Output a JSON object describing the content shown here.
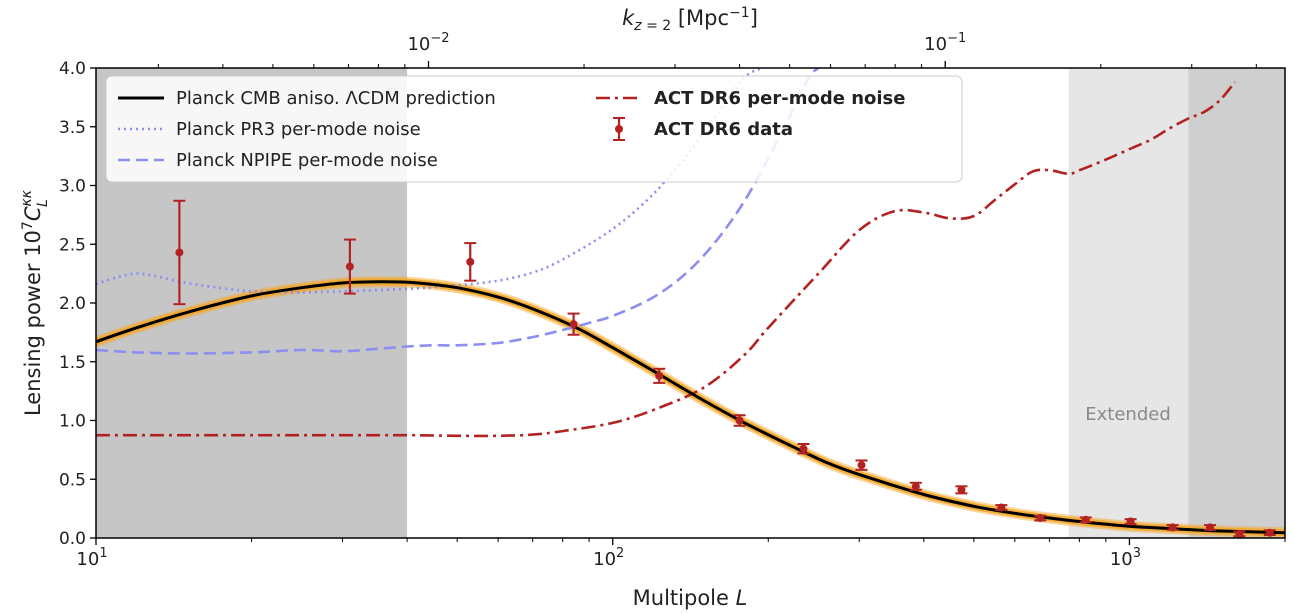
{
  "chart_data": {
    "type": "line",
    "xlabel_prefix": "Multipole ",
    "xlabel_var": "L",
    "ylabel": "Lensing power 10⁷C_L^κκ",
    "top_xlabel": "k_{z=2} [Mpc⁻¹]",
    "xscale": "log",
    "xlim": [
      10,
      2000
    ],
    "ylim": [
      0,
      4.0
    ],
    "yticks": [
      "0.0",
      "0.5",
      "1.0",
      "1.5",
      "2.0",
      "2.5",
      "3.0",
      "3.5",
      "4.0"
    ],
    "xticks": [
      {
        "base": "10",
        "exp": "1"
      },
      {
        "base": "10",
        "exp": "2"
      },
      {
        "base": "10",
        "exp": "3"
      }
    ],
    "top_ticks": [
      {
        "base": "10",
        "exp": "−2",
        "x": 44
      },
      {
        "base": "10",
        "exp": "−1",
        "x": 440
      }
    ],
    "shaded_regions": [
      {
        "from": 10,
        "to": 40,
        "color": "#c6c6c6"
      },
      {
        "from": 763,
        "to": 1300,
        "color": "#e6e6e6",
        "label": "Extended"
      },
      {
        "from": 1300,
        "to": 2000,
        "color": "#cfcfcf"
      }
    ],
    "series": [
      {
        "name": "Planck CMB aniso. ΛCDM prediction",
        "color": "#000000",
        "style": "solid",
        "x": [
          10,
          12,
          15,
          20,
          25,
          30,
          36,
          42,
          50,
          60,
          70,
          85,
          100,
          120,
          150,
          180,
          220,
          260,
          300,
          400,
          500,
          600,
          700,
          800,
          1000,
          1200,
          1500,
          2000
        ],
        "y": [
          1.67,
          1.79,
          1.92,
          2.06,
          2.13,
          2.17,
          2.18,
          2.17,
          2.13,
          2.05,
          1.95,
          1.79,
          1.62,
          1.42,
          1.17,
          0.98,
          0.79,
          0.64,
          0.54,
          0.37,
          0.27,
          0.21,
          0.17,
          0.14,
          0.1,
          0.08,
          0.06,
          0.045
        ]
      },
      {
        "name": "Planck PR3 per-mode noise",
        "color": "#8c8ff0",
        "style": "dotted",
        "x": [
          10,
          11,
          12,
          13,
          15,
          18,
          20,
          25,
          30,
          40,
          50,
          60,
          70,
          80,
          100,
          120,
          140,
          160,
          180,
          195
        ],
        "y": [
          2.16,
          2.22,
          2.25,
          2.23,
          2.17,
          2.12,
          2.1,
          2.09,
          2.1,
          2.12,
          2.15,
          2.19,
          2.26,
          2.37,
          2.63,
          2.93,
          3.27,
          3.62,
          3.92,
          4.0
        ]
      },
      {
        "name": "Planck NPIPE per-mode noise",
        "color": "#8c8ff0",
        "style": "dashed",
        "x": [
          10,
          12,
          15,
          20,
          25,
          30,
          35,
          40,
          45,
          50,
          60,
          70,
          80,
          90,
          100,
          120,
          140,
          160,
          180,
          200,
          220,
          240,
          250
        ],
        "y": [
          1.6,
          1.58,
          1.57,
          1.58,
          1.6,
          1.59,
          1.61,
          1.63,
          1.64,
          1.64,
          1.66,
          1.71,
          1.77,
          1.83,
          1.89,
          2.05,
          2.27,
          2.55,
          2.87,
          3.23,
          3.59,
          3.92,
          4.0
        ]
      },
      {
        "name": "ACT DR6 per-mode noise",
        "color": "#b22222",
        "style": "dashdot",
        "x": [
          10,
          20,
          30,
          40,
          50,
          60,
          70,
          80,
          100,
          120,
          150,
          180,
          200,
          250,
          300,
          350,
          400,
          450,
          500,
          550,
          600,
          650,
          700,
          763,
          800,
          900,
          1000,
          1100,
          1200,
          1300,
          1400,
          1500,
          1600
        ],
        "y": [
          0.875,
          0.875,
          0.875,
          0.875,
          0.87,
          0.87,
          0.88,
          0.91,
          0.98,
          1.09,
          1.28,
          1.56,
          1.79,
          2.25,
          2.62,
          2.78,
          2.77,
          2.72,
          2.74,
          2.88,
          3.01,
          3.12,
          3.13,
          3.1,
          3.13,
          3.22,
          3.31,
          3.39,
          3.49,
          3.57,
          3.63,
          3.73,
          3.88
        ]
      }
    ],
    "data_points": {
      "name": "ACT DR6 data",
      "color": "#b22222",
      "x": [
        14.5,
        31,
        53,
        84,
        123,
        176,
        234,
        303,
        386,
        473,
        565,
        672,
        823,
        1005,
        1212,
        1432,
        1632,
        1869
      ],
      "y": [
        2.43,
        2.31,
        2.35,
        1.82,
        1.38,
        1.0,
        0.76,
        0.62,
        0.44,
        0.41,
        0.26,
        0.17,
        0.155,
        0.14,
        0.09,
        0.09,
        0.035,
        0.045
      ],
      "err": [
        0.44,
        0.23,
        0.16,
        0.09,
        0.06,
        0.045,
        0.04,
        0.04,
        0.03,
        0.03,
        0.02,
        0.02,
        0.02,
        0.02,
        0.02,
        0.02,
        0.02,
        0.02
      ]
    },
    "annotation": "Extended",
    "legend_placement": "top-left",
    "band_color": "#f5a623"
  }
}
